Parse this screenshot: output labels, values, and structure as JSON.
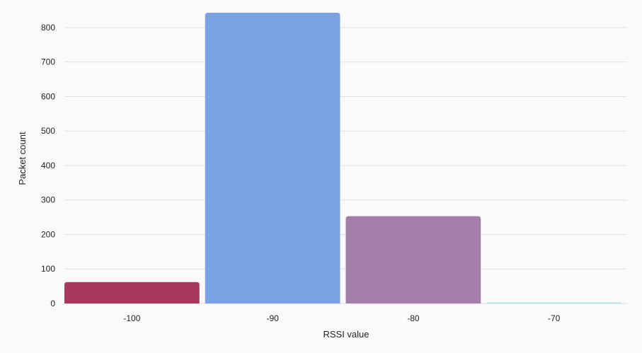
{
  "chart_data": {
    "type": "bar",
    "categories": [
      "-100",
      "-90",
      "-80",
      "-70"
    ],
    "values": [
      62,
      843,
      253,
      3
    ],
    "colors": [
      "#a8385d",
      "#7aa3e5",
      "#a27ea8",
      "#aae3f5"
    ],
    "xlabel": "RSSI value",
    "ylabel": "Packet count",
    "ylim": [
      0,
      843
    ],
    "yticks": [
      0,
      100,
      200,
      300,
      400,
      500,
      600,
      700,
      800
    ],
    "grid": true,
    "legend": "none"
  }
}
